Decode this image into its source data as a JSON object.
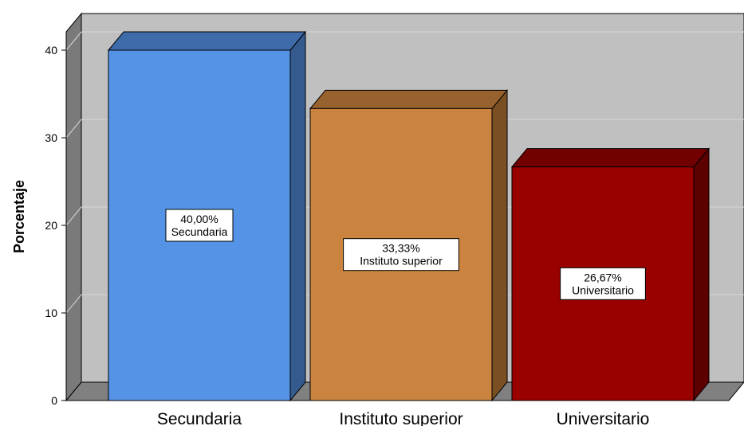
{
  "chart_data": {
    "type": "bar",
    "categories": [
      "Secundaria",
      "Instituto superior",
      "Universitario"
    ],
    "values": [
      40.0,
      33.33,
      26.67
    ],
    "data_labels": [
      {
        "value": "40,00%",
        "category": "Secundaria"
      },
      {
        "value": "33,33%",
        "category": "Instituto superior"
      },
      {
        "value": "26,67%",
        "category": "Universitario"
      }
    ],
    "title": "",
    "xlabel": "",
    "ylabel": "Porcentaje",
    "ylim": [
      0,
      40
    ],
    "yticks": [
      "0",
      "10",
      "20",
      "30",
      "40"
    ],
    "grid": true,
    "style_3d": true,
    "colors": {
      "bars": [
        "#5593e6",
        "#cb843f",
        "#990000"
      ],
      "bar_sides": [
        "#345a8e",
        "#7a4f24",
        "#5c0000"
      ],
      "bar_tops": [
        "#3e6cab",
        "#97622e",
        "#730000"
      ],
      "wall": "#c0c0c0",
      "floor": "#808080",
      "grid": "#d6d6d6"
    }
  }
}
